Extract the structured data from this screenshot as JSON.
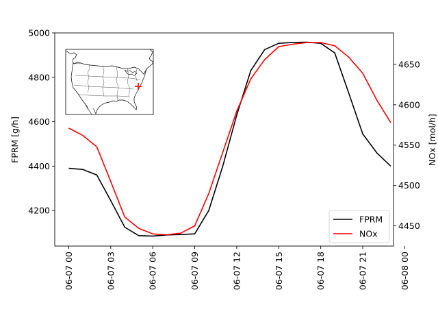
{
  "chart_data": {
    "type": "line",
    "title": "",
    "xlabel": "",
    "ylabel_left": "FPRM [g/h]",
    "ylabel_right": "NOx [mol/h]",
    "xlim_hours": [
      -1,
      23.2
    ],
    "ylim_left": [
      4040,
      5000
    ],
    "ylim_right": [
      4425,
      4689
    ],
    "x_tick_hours": [
      0,
      3,
      6,
      9,
      12,
      15,
      18,
      21,
      24
    ],
    "x_tick_labels": [
      "06-07 00",
      "06-07 03",
      "06-07 06",
      "06-07 09",
      "06-07 12",
      "06-07 15",
      "06-07 18",
      "06-07 21",
      "06-08 00"
    ],
    "y_ticks_left": [
      4200,
      4400,
      4600,
      4800,
      5000
    ],
    "y_ticks_right": [
      4450,
      4500,
      4550,
      4600,
      4650
    ],
    "legend_position": "lower-right",
    "series": [
      {
        "name": "FPRM",
        "axis": "left",
        "color": "#000000",
        "x_hours": [
          0,
          1,
          2,
          3,
          4,
          5,
          6,
          7,
          8,
          9,
          10,
          11,
          12,
          13,
          14,
          15,
          16,
          17,
          18,
          19,
          20,
          21,
          22,
          23
        ],
        "values": [
          4390,
          4385,
          4360,
          4245,
          4125,
          4087,
          4085,
          4090,
          4092,
          4095,
          4200,
          4400,
          4630,
          4830,
          4925,
          4953,
          4957,
          4958,
          4953,
          4910,
          4730,
          4545,
          4460,
          4400
        ]
      },
      {
        "name": "NOx",
        "axis": "right",
        "color": "#ff0000",
        "x_hours": [
          0,
          1,
          2,
          3,
          4,
          5,
          6,
          7,
          8,
          9,
          10,
          11,
          12,
          13,
          14,
          15,
          16,
          17,
          18,
          19,
          20,
          21,
          22,
          23
        ],
        "values": [
          4571,
          4562,
          4548,
          4505,
          4461,
          4447,
          4440,
          4439,
          4441,
          4450,
          4490,
          4541,
          4592,
          4632,
          4656,
          4672,
          4675,
          4677,
          4677,
          4673,
          4659,
          4639,
          4606,
          4578
        ]
      }
    ],
    "inset": {
      "description_type": "map",
      "marker": "+",
      "marker_color": "#ff0000"
    }
  }
}
